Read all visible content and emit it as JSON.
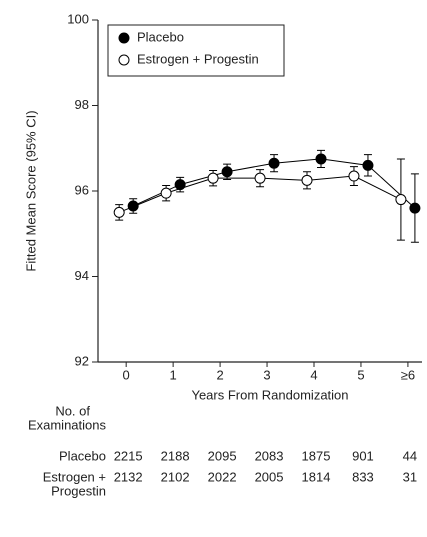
{
  "chart_data": {
    "type": "line",
    "y_label": "Fitted Mean Score (95% CI)",
    "x_label": "Years From Randomization",
    "x": [
      0,
      1,
      2,
      3,
      4,
      5,
      6
    ],
    "xlim": [
      -0.6,
      6.3
    ],
    "xticks": [
      0,
      1,
      2,
      3,
      4,
      5,
      {
        "value": 6,
        "label": "≥6"
      }
    ],
    "ylim": [
      92,
      100
    ],
    "yticks": [
      92,
      94,
      96,
      98,
      100
    ],
    "legend_position": "upper left",
    "series": [
      {
        "name": "Placebo",
        "color": "#000000",
        "marker": "filled",
        "values": [
          95.65,
          96.15,
          96.45,
          96.65,
          96.75,
          96.6,
          95.6
        ],
        "error": [
          0.17,
          0.17,
          0.18,
          0.2,
          0.2,
          0.25,
          0.8
        ]
      },
      {
        "name": "Estrogen + Progestin",
        "color": "#000000",
        "marker": "open",
        "values": [
          95.5,
          95.95,
          96.3,
          96.3,
          96.25,
          96.35,
          95.8
        ],
        "error": [
          0.18,
          0.18,
          0.18,
          0.2,
          0.2,
          0.22,
          0.95
        ]
      }
    ]
  },
  "table": {
    "header": [
      "No. of",
      "Examinations"
    ],
    "rows": [
      {
        "label": [
          "Placebo"
        ],
        "values": [
          2215,
          2188,
          2095,
          2083,
          1875,
          901,
          44
        ]
      },
      {
        "label": [
          "Estrogen +",
          "Progestin"
        ],
        "values": [
          2132,
          2102,
          2022,
          2005,
          1814,
          833,
          31
        ]
      }
    ]
  }
}
